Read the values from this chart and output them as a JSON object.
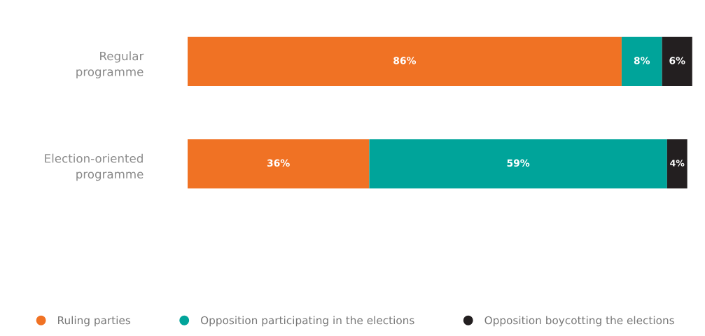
{
  "chart_data": {
    "type": "bar",
    "orientation": "horizontal",
    "stacked": true,
    "legend": "bottom",
    "marker": "circle",
    "grid": false,
    "categories": [
      "Regular programme",
      "Election-oriented programme"
    ],
    "series": [
      {
        "name": "Ruling parties",
        "color": "#f07224",
        "values": [
          86,
          36
        ],
        "value_labels": [
          "86%",
          "36%"
        ]
      },
      {
        "name": "Opposition participating in the elections",
        "color": "#00a49a",
        "values": [
          8,
          59
        ],
        "value_labels": [
          "8%",
          "59%"
        ]
      },
      {
        "name": "Opposition boycotting the elections",
        "color": "#231f20",
        "values": [
          6,
          4
        ],
        "value_labels": [
          "6%",
          "4%"
        ]
      }
    ]
  }
}
